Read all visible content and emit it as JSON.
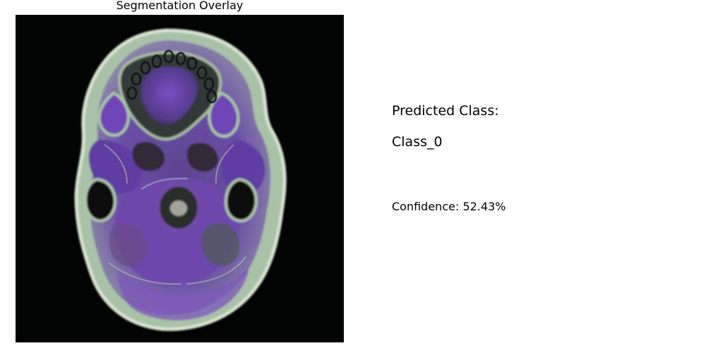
{
  "figure": {
    "title": "Segmentation Overlay",
    "image_alt": "MRI axial head scan with segmentation overlay"
  },
  "prediction": {
    "label": "Predicted Class:",
    "value": "Class_0",
    "confidence_label": "Confidence:",
    "confidence_value": "52.43%",
    "confidence_text": "Confidence: 52.43%"
  },
  "colors": {
    "background": "#ffffff",
    "scan_background": "#020303",
    "overlay": "#7a4fc9",
    "tissue": "#9fb89a"
  }
}
